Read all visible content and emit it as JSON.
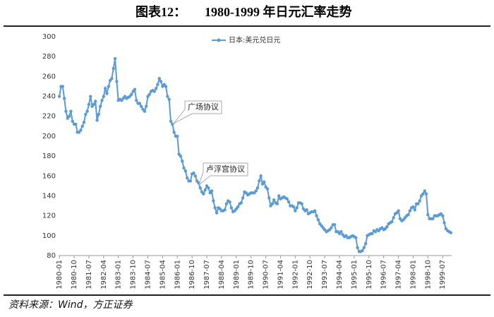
{
  "chart_data": {
    "type": "line",
    "figure_label": "图表12：",
    "title": "1980-1999 年日元汇率走势",
    "source": "资料来源：Wind，方正证券",
    "annotations": [
      "广场协议",
      "卢浮宫协议"
    ],
    "categories": [
      "1980-01",
      null,
      null,
      null,
      null,
      null,
      null,
      null,
      null,
      "1980-10",
      null,
      null,
      null,
      null,
      null,
      null,
      null,
      null,
      "1981-07",
      null,
      null,
      null,
      null,
      null,
      null,
      null,
      null,
      "1982-04",
      null,
      null,
      null,
      null,
      null,
      null,
      null,
      null,
      "1983-01",
      null,
      null,
      null,
      null,
      null,
      null,
      null,
      null,
      "1983-10",
      null,
      null,
      null,
      null,
      null,
      null,
      null,
      null,
      "1984-07",
      null,
      null,
      null,
      null,
      null,
      null,
      null,
      null,
      "1985-04",
      null,
      null,
      null,
      null,
      null,
      null,
      null,
      null,
      "1986-01",
      null,
      null,
      null,
      null,
      null,
      null,
      null,
      null,
      "1986-10",
      null,
      null,
      null,
      null,
      null,
      null,
      null,
      null,
      "1987-07",
      null,
      null,
      null,
      null,
      null,
      null,
      null,
      null,
      "1988-04",
      null,
      null,
      null,
      null,
      null,
      null,
      null,
      null,
      "1989-01",
      null,
      null,
      null,
      null,
      null,
      null,
      null,
      null,
      "1989-10",
      null,
      null,
      null,
      null,
      null,
      null,
      null,
      null,
      "1990-07",
      null,
      null,
      null,
      null,
      null,
      null,
      null,
      null,
      "1991-04",
      null,
      null,
      null,
      null,
      null,
      null,
      null,
      null,
      "1992-01",
      null,
      null,
      null,
      null,
      null,
      null,
      null,
      null,
      "1992-10",
      null,
      null,
      null,
      null,
      null,
      null,
      null,
      null,
      "1993-07",
      null,
      null,
      null,
      null,
      null,
      null,
      null,
      null,
      "1994-04",
      null,
      null,
      null,
      null,
      null,
      null,
      null,
      null,
      "1995-01",
      null,
      null,
      null,
      null,
      null,
      null,
      null,
      null,
      "1995-10",
      null,
      null,
      null,
      null,
      null,
      null,
      null,
      null,
      "1996-07",
      null,
      null,
      null,
      null,
      null,
      null,
      null,
      null,
      "1997-04",
      null,
      null,
      null,
      null,
      null,
      null,
      null,
      null,
      "1998-01",
      null,
      null,
      null,
      null,
      null,
      null,
      null,
      null,
      "1998-10",
      null,
      null,
      null,
      null,
      null,
      null,
      null,
      null,
      "1999-07",
      null,
      null,
      null,
      null,
      null
    ],
    "series": [
      {
        "name": "日本:美元兑日元",
        "color": "#5b9bd5",
        "values": [
          240,
          250,
          250,
          238,
          225,
          218,
          220,
          225,
          215,
          212,
          212,
          204,
          204,
          206,
          210,
          214,
          222,
          225,
          232,
          240,
          230,
          232,
          235,
          216,
          222,
          230,
          236,
          240,
          248,
          243,
          250,
          256,
          258,
          268,
          278,
          255,
          236,
          237,
          236,
          238,
          240,
          238,
          239,
          240,
          242,
          245,
          247,
          236,
          233,
          233,
          230,
          227,
          225,
          230,
          240,
          242,
          245,
          246,
          245,
          248,
          252,
          258,
          255,
          250,
          252,
          250,
          240,
          237,
          215,
          212,
          204,
          200,
          200,
          182,
          180,
          175,
          168,
          165,
          158,
          155,
          155,
          162,
          163,
          160,
          155,
          153,
          148,
          144,
          142,
          146,
          150,
          148,
          143,
          145,
          135,
          128,
          123,
          128,
          127,
          125,
          125,
          126,
          132,
          135,
          134,
          128,
          124,
          125,
          127,
          129,
          132,
          133,
          138,
          144,
          143,
          141,
          142,
          143,
          143,
          143,
          145,
          148,
          155,
          160,
          152,
          154,
          149,
          147,
          138,
          130,
          132,
          136,
          133,
          132,
          140,
          137,
          138,
          139,
          138,
          137,
          134,
          130,
          130,
          129,
          125,
          128,
          133,
          133,
          132,
          127,
          125,
          126,
          122,
          123,
          124,
          124,
          125,
          120,
          116,
          112,
          110,
          108,
          106,
          104,
          105,
          106,
          108,
          111,
          111,
          104,
          104,
          102,
          104,
          101,
          99,
          100,
          98,
          98,
          99,
          100,
          99,
          98,
          88,
          84,
          84,
          85,
          88,
          92,
          100,
          101,
          102,
          102,
          105,
          104,
          106,
          105,
          107,
          108,
          106,
          107,
          109,
          112,
          113,
          114,
          118,
          122,
          123,
          125,
          117,
          115,
          116,
          118,
          120,
          121,
          125,
          128,
          129,
          126,
          132,
          132,
          135,
          140,
          142,
          145,
          142,
          121,
          117,
          117,
          117,
          120,
          120,
          120,
          121,
          122,
          120,
          113,
          107,
          105,
          104,
          103
        ]
      }
    ],
    "ylim": [
      80,
      300
    ],
    "yticks": [
      80,
      100,
      120,
      140,
      160,
      180,
      200,
      220,
      240,
      260,
      280,
      300
    ],
    "legend": "top"
  }
}
